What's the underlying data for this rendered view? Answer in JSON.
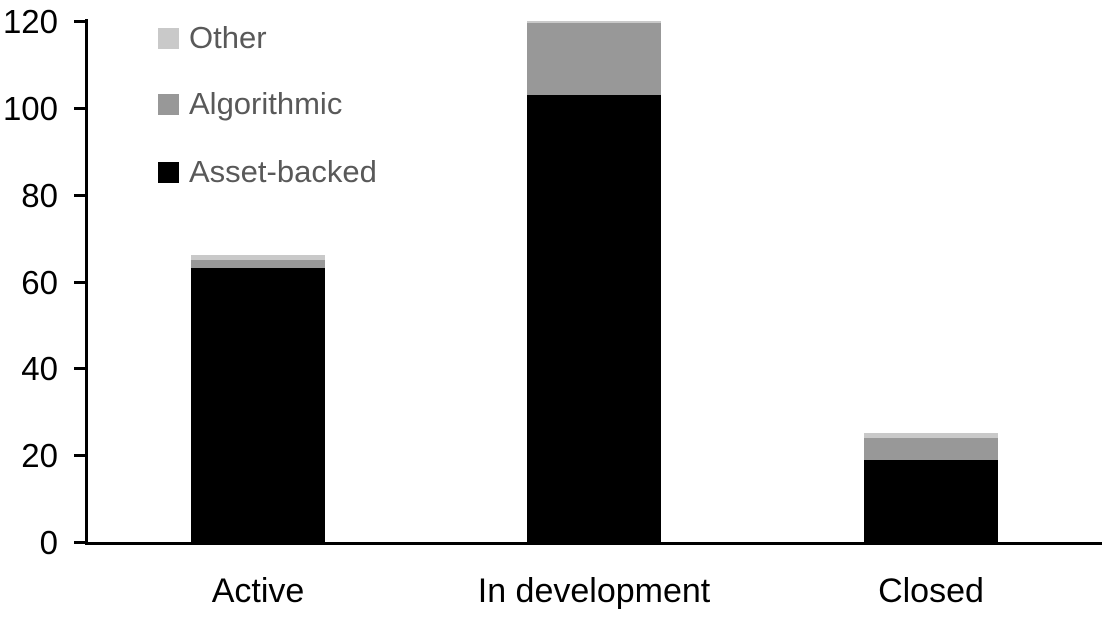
{
  "chart_data": {
    "type": "bar",
    "stacked": true,
    "title": "",
    "xlabel": "",
    "ylabel": "",
    "categories": [
      "Active",
      "In development",
      "Closed"
    ],
    "series": [
      {
        "name": "Asset-backed",
        "color": "#000000",
        "values": [
          63,
          103,
          19
        ]
      },
      {
        "name": "Algorithmic",
        "color": "#989898",
        "values": [
          2,
          16.5,
          5
        ]
      },
      {
        "name": "Other",
        "color": "#c9c9c9",
        "values": [
          1,
          0.5,
          1
        ]
      }
    ],
    "totals": [
      66,
      120,
      25
    ],
    "ylim": [
      0,
      120
    ],
    "y_ticks": [
      0,
      20,
      40,
      60,
      80,
      100,
      120
    ],
    "grid": false,
    "legend_position": "top-left",
    "legend_order": [
      "Other",
      "Algorithmic",
      "Asset-backed"
    ],
    "colors": {
      "background": "#ffffff",
      "axis": "#000000",
      "tick_label": "#000000",
      "category_label": "#000000",
      "legend_text": "#595959"
    }
  }
}
